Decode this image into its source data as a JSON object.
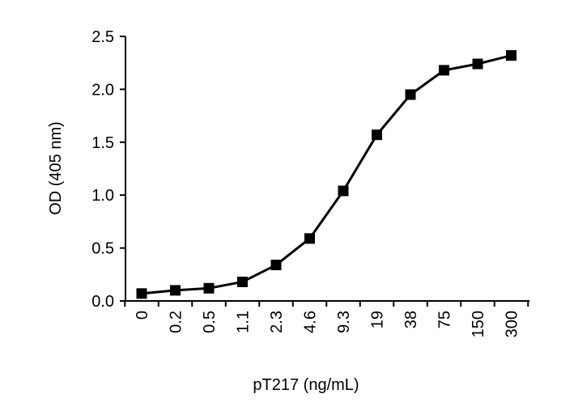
{
  "chart_data": {
    "type": "line",
    "title": "",
    "xlabel": "pT217 (ng/mL)",
    "ylabel": "OD (405 nm)",
    "categories": [
      "0",
      "0.2",
      "0.5",
      "1.1",
      "2.3",
      "4.6",
      "9.3",
      "19",
      "38",
      "75",
      "150",
      "300"
    ],
    "series": [
      {
        "values": [
          0.07,
          0.1,
          0.12,
          0.18,
          0.34,
          0.59,
          1.04,
          1.57,
          1.95,
          2.18,
          2.24,
          2.32
        ],
        "marker": "square",
        "color": "#000000"
      }
    ],
    "ylim": [
      0,
      2.5
    ],
    "yticks": [
      "0.0",
      "0.5",
      "1.0",
      "1.5",
      "2.0",
      "2.5"
    ],
    "grid": false,
    "legend": "none"
  }
}
